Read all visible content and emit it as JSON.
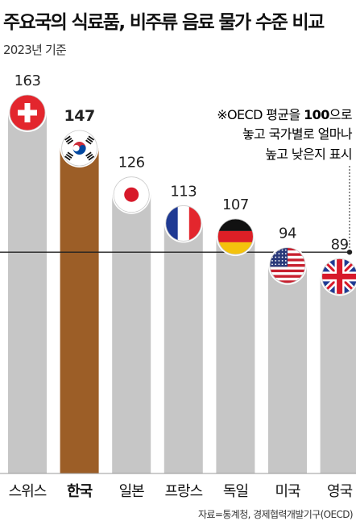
{
  "title": "주요국의 식료품, 비주류 음료 물가 수준 비교",
  "subtitle": "2023년 기준",
  "note": {
    "lines": [
      {
        "prefix": "※OECD 평균을 ",
        "bold": "100",
        "suffix": "으로"
      },
      {
        "prefix": "놓고 국가별로 얼마나",
        "bold": "",
        "suffix": ""
      },
      {
        "prefix": "높고 낮은지 표시",
        "bold": "",
        "suffix": ""
      }
    ]
  },
  "source": "자료=통계청, 경제협력개발기구(OECD)",
  "colors": {
    "bar": "#c6c6c6",
    "highlight": "#9c5e27",
    "line": "#222222"
  },
  "chart_data": {
    "type": "bar",
    "categories": [
      "스위스",
      "한국",
      "일본",
      "프랑스",
      "독일",
      "미국",
      "영국"
    ],
    "values": [
      163,
      147,
      126,
      113,
      107,
      94,
      89
    ],
    "flags": [
      "flag-switzerland",
      "flag-south-korea",
      "flag-japan",
      "flag-france",
      "flag-germany",
      "flag-usa",
      "flag-uk"
    ],
    "highlight": "한국",
    "reference": {
      "value": 100
    },
    "ylim": [
      0,
      163
    ]
  }
}
